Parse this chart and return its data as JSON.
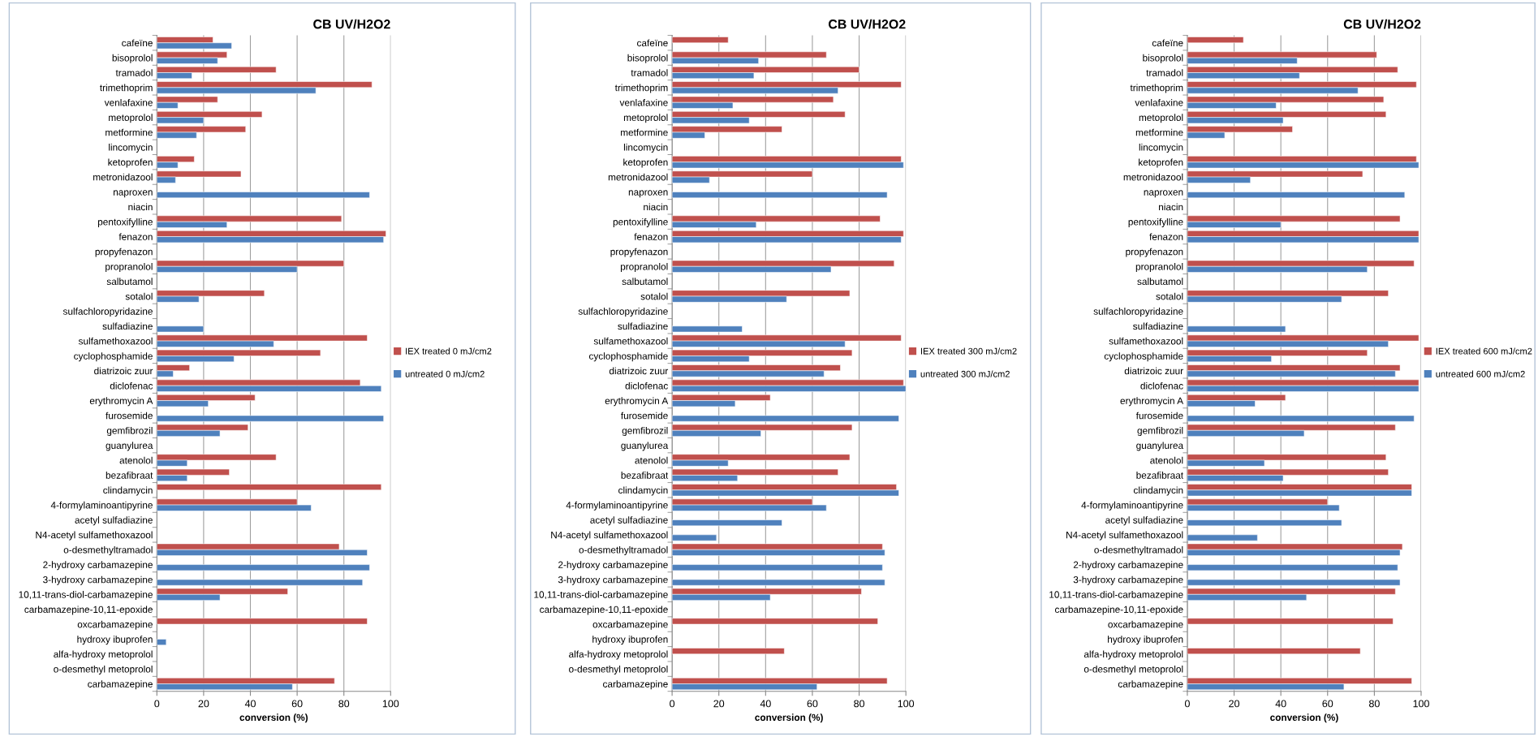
{
  "chart_data": [
    {
      "type": "bar",
      "orientation": "horizontal",
      "title": "CB UV/H2O2",
      "xlabel": "conversion (%)",
      "xlim": [
        0,
        100
      ],
      "xticks": [
        0,
        20,
        40,
        60,
        80,
        100
      ],
      "grid": "x",
      "legend": "right",
      "categories": [
        "cafeïne",
        "bisoprolol",
        "tramadol",
        "trimethoprim",
        "venlafaxine",
        "metoprolol",
        "metformine",
        "lincomycin",
        "ketoprofen",
        "metronidazool",
        "naproxen",
        "niacin",
        "pentoxifylline",
        "fenazon",
        "propyfenazon",
        "propranolol",
        "salbutamol",
        "sotalol",
        "sulfachloropyridazine",
        "sulfadiazine",
        "sulfamethoxazool",
        "cyclophosphamide",
        "diatrizoic zuur",
        "diclofenac",
        "erythromycin A",
        "furosemide",
        "gemfibrozil",
        "guanylurea",
        "atenolol",
        "bezafibraat",
        "clindamycin",
        "4-formylaminoantipyrine",
        "acetyl sulfadiazine",
        "N4-acetyl sulfamethoxazool",
        "o-desmethyltramadol",
        "2-hydroxy carbamazepine",
        "3-hydroxy carbamazepine",
        "10,11-trans-diol-carbamazepine",
        "carbamazepine-10,11-epoxide",
        "oxcarbamazepine",
        "hydroxy ibuprofen",
        "alfa-hydroxy metoprolol",
        "o-desmethyl metoprolol",
        "carbamazepine"
      ],
      "series": [
        {
          "name": "IEX treated 0 mJ/cm2",
          "color": "#c0504d",
          "values": [
            24,
            30,
            51,
            92,
            26,
            45,
            38,
            null,
            16,
            36,
            null,
            null,
            79,
            98,
            null,
            80,
            null,
            46,
            null,
            null,
            90,
            70,
            14,
            87,
            42,
            null,
            39,
            null,
            51,
            31,
            96,
            60,
            null,
            null,
            78,
            null,
            null,
            56,
            null,
            90,
            null,
            null,
            null,
            76
          ]
        },
        {
          "name": "untreated 0 mJ/cm2",
          "color": "#4f81bd",
          "values": [
            32,
            26,
            15,
            68,
            9,
            20,
            17,
            null,
            9,
            8,
            91,
            null,
            30,
            97,
            null,
            60,
            null,
            18,
            null,
            20,
            50,
            33,
            7,
            96,
            22,
            97,
            27,
            null,
            13,
            13,
            null,
            66,
            null,
            null,
            90,
            91,
            88,
            27,
            null,
            null,
            4,
            null,
            null,
            58
          ]
        }
      ]
    },
    {
      "type": "bar",
      "orientation": "horizontal",
      "title": "CB UV/H2O2",
      "xlabel": "conversion (%)",
      "xlim": [
        0,
        100
      ],
      "xticks": [
        0,
        20,
        40,
        60,
        80,
        100
      ],
      "grid": "x",
      "legend": "right",
      "categories": [
        "cafeïne",
        "bisoprolol",
        "tramadol",
        "trimethoprim",
        "venlafaxine",
        "metoprolol",
        "metformine",
        "lincomycin",
        "ketoprofen",
        "metronidazool",
        "naproxen",
        "niacin",
        "pentoxifylline",
        "fenazon",
        "propyfenazon",
        "propranolol",
        "salbutamol",
        "sotalol",
        "sulfachloropyridazine",
        "sulfadiazine",
        "sulfamethoxazool",
        "cyclophosphamide",
        "diatrizoic zuur",
        "diclofenac",
        "erythromycin A",
        "furosemide",
        "gemfibrozil",
        "guanylurea",
        "atenolol",
        "bezafibraat",
        "clindamycin",
        "4-formylaminoantipyrine",
        "acetyl sulfadiazine",
        "N4-acetyl sulfamethoxazool",
        "o-desmethyltramadol",
        "2-hydroxy carbamazepine",
        "3-hydroxy carbamazepine",
        "10,11-trans-diol-carbamazepine",
        "carbamazepine-10,11-epoxide",
        "oxcarbamazepine",
        "hydroxy ibuprofen",
        "alfa-hydroxy metoprolol",
        "o-desmethyl metoprolol",
        "carbamazepine"
      ],
      "series": [
        {
          "name": "IEX treated 300 mJ/cm2",
          "color": "#c0504d",
          "values": [
            24,
            66,
            80,
            98,
            69,
            74,
            47,
            null,
            98,
            60,
            null,
            null,
            89,
            99,
            null,
            95,
            null,
            76,
            null,
            null,
            98,
            77,
            72,
            99,
            42,
            null,
            77,
            null,
            76,
            71,
            96,
            60,
            null,
            null,
            90,
            null,
            null,
            81,
            null,
            88,
            null,
            48,
            null,
            92
          ]
        },
        {
          "name": "untreated 300 mJ/cm2",
          "color": "#4f81bd",
          "values": [
            null,
            37,
            35,
            71,
            26,
            33,
            14,
            null,
            99,
            16,
            92,
            null,
            36,
            98,
            null,
            68,
            null,
            49,
            null,
            30,
            74,
            33,
            65,
            100,
            27,
            97,
            38,
            null,
            24,
            28,
            97,
            66,
            47,
            19,
            91,
            90,
            91,
            42,
            null,
            null,
            null,
            null,
            null,
            62
          ]
        }
      ]
    },
    {
      "type": "bar",
      "orientation": "horizontal",
      "title": "CB UV/H2O2",
      "xlabel": "conversion (%)",
      "xlim": [
        0,
        100
      ],
      "xticks": [
        0,
        20,
        40,
        60,
        80,
        100
      ],
      "grid": "x",
      "legend": "right",
      "categories": [
        "cafeïne",
        "bisoprolol",
        "tramadol",
        "trimethoprim",
        "venlafaxine",
        "metoprolol",
        "metformine",
        "lincomycin",
        "ketoprofen",
        "metronidazool",
        "naproxen",
        "niacin",
        "pentoxifylline",
        "fenazon",
        "propyfenazon",
        "propranolol",
        "salbutamol",
        "sotalol",
        "sulfachloropyridazine",
        "sulfadiazine",
        "sulfamethoxazool",
        "cyclophosphamide",
        "diatrizoic zuur",
        "diclofenac",
        "erythromycin A",
        "furosemide",
        "gemfibrozil",
        "guanylurea",
        "atenolol",
        "bezafibraat",
        "clindamycin",
        "4-formylaminoantipyrine",
        "acetyl sulfadiazine",
        "N4-acetyl sulfamethoxazool",
        "o-desmethyltramadol",
        "2-hydroxy carbamazepine",
        "3-hydroxy carbamazepine",
        "10,11-trans-diol-carbamazepine",
        "carbamazepine-10,11-epoxide",
        "oxcarbamazepine",
        "hydroxy ibuprofen",
        "alfa-hydroxy metoprolol",
        "o-desmethyl metoprolol",
        "carbamazepine"
      ],
      "series": [
        {
          "name": "IEX treated 600 mJ/cm2",
          "color": "#c0504d",
          "values": [
            24,
            81,
            90,
            98,
            84,
            85,
            45,
            null,
            98,
            75,
            null,
            null,
            91,
            99,
            null,
            97,
            null,
            86,
            null,
            null,
            99,
            77,
            91,
            99,
            42,
            null,
            89,
            null,
            85,
            86,
            96,
            60,
            null,
            null,
            92,
            null,
            null,
            89,
            null,
            88,
            null,
            74,
            null,
            96
          ]
        },
        {
          "name": "untreated 600 mJ/cm2",
          "color": "#4f81bd",
          "values": [
            null,
            47,
            48,
            73,
            38,
            41,
            16,
            null,
            99,
            27,
            93,
            null,
            40,
            99,
            null,
            77,
            null,
            66,
            null,
            42,
            86,
            36,
            89,
            99,
            29,
            97,
            50,
            null,
            33,
            41,
            96,
            65,
            66,
            30,
            91,
            90,
            91,
            51,
            null,
            null,
            null,
            null,
            null,
            67
          ]
        }
      ]
    }
  ]
}
